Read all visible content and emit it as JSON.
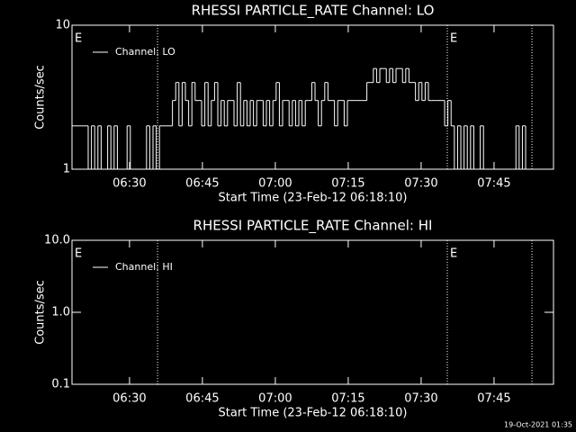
{
  "chart_data": [
    {
      "type": "line",
      "title": "RHESSI PARTICLE_RATE Channel: LO",
      "xlabel": "Start Time (23-Feb-12 06:18:10)",
      "ylabel": "Counts/sec",
      "log_y": true,
      "legend": "upper left",
      "xlim": [
        0,
        5944
      ],
      "xticks": [
        {
          "value": 710,
          "label": "06:30"
        },
        {
          "value": 1610,
          "label": "06:45"
        },
        {
          "value": 2510,
          "label": "07:00"
        },
        {
          "value": 3410,
          "label": "07:15"
        },
        {
          "value": 4310,
          "label": "07:30"
        },
        {
          "value": 5210,
          "label": "07:45"
        }
      ],
      "ylim": [
        1,
        10
      ],
      "yticks": [
        1,
        10
      ],
      "vlines": [
        1056,
        4633,
        5678
      ],
      "annotations": [
        {
          "x": 0,
          "text": "E"
        },
        {
          "x": 4633,
          "text": "E"
        }
      ],
      "x": [
        0,
        40,
        80,
        120,
        160,
        200,
        240,
        280,
        320,
        360,
        400,
        440,
        480,
        520,
        560,
        600,
        640,
        680,
        720,
        760,
        800,
        840,
        880,
        920,
        960,
        1000,
        1040,
        1080,
        1120,
        1160,
        1200,
        1240,
        1280,
        1320,
        1360,
        1400,
        1440,
        1480,
        1520,
        1560,
        1600,
        1640,
        1680,
        1720,
        1760,
        1800,
        1840,
        1880,
        1920,
        1960,
        2000,
        2040,
        2080,
        2120,
        2160,
        2200,
        2240,
        2280,
        2320,
        2360,
        2400,
        2440,
        2480,
        2520,
        2560,
        2600,
        2640,
        2680,
        2720,
        2760,
        2800,
        2840,
        2880,
        2920,
        2960,
        3000,
        3040,
        3080,
        3120,
        3160,
        3200,
        3240,
        3280,
        3320,
        3360,
        3400,
        3440,
        3480,
        3520,
        3560,
        3600,
        3640,
        3680,
        3720,
        3760,
        3800,
        3840,
        3880,
        3920,
        3960,
        4000,
        4040,
        4080,
        4120,
        4160,
        4200,
        4240,
        4280,
        4320,
        4360,
        4400,
        4440,
        4480,
        4520,
        4560,
        4600,
        4640,
        4680,
        4720,
        4760,
        4800,
        4840,
        4880,
        4920,
        4960,
        5000,
        5040,
        5080,
        5120,
        5160,
        5200,
        5240,
        5280,
        5320,
        5360,
        5400,
        5440,
        5480,
        5520,
        5560,
        5600,
        5640,
        5680
      ],
      "series": [
        {
          "name": "Channel: LO",
          "color": "#ffffff",
          "values": [
            2,
            2,
            2,
            2,
            2,
            1,
            2,
            1,
            2,
            1,
            1,
            2,
            1,
            2,
            1,
            1,
            1,
            2,
            1,
            1,
            1,
            1,
            1,
            2,
            1,
            2,
            1,
            2,
            2,
            2,
            2,
            3,
            4,
            2,
            4,
            3,
            2,
            4,
            3,
            3,
            2,
            4,
            2,
            3,
            4,
            2,
            3,
            2,
            3,
            3,
            2,
            4,
            2,
            3,
            2,
            3,
            2,
            3,
            3,
            2,
            3,
            2,
            3,
            4,
            2,
            3,
            3,
            2,
            3,
            2,
            3,
            2,
            3,
            3,
            4,
            3,
            2,
            3,
            4,
            3,
            3,
            2,
            3,
            3,
            2,
            3,
            3,
            3,
            3,
            3,
            3,
            4,
            4,
            5,
            4,
            5,
            5,
            4,
            5,
            4,
            5,
            5,
            4,
            5,
            4,
            4,
            3,
            4,
            3,
            4,
            3,
            3,
            3,
            3,
            3,
            2,
            3,
            2,
            1,
            2,
            1,
            2,
            1,
            2,
            1,
            1,
            2,
            1,
            1,
            1,
            1,
            1,
            1,
            1,
            1,
            1,
            1,
            2,
            1,
            2,
            1,
            1,
            1
          ]
        }
      ]
    },
    {
      "type": "line",
      "title": "RHESSI PARTICLE_RATE Channel: HI",
      "xlabel": "Start Time (23-Feb-12 06:18:10)",
      "ylabel": "Counts/sec",
      "log_y": true,
      "legend": "upper left",
      "xlim": [
        0,
        5944
      ],
      "xticks": [
        {
          "value": 710,
          "label": "06:30"
        },
        {
          "value": 1610,
          "label": "06:45"
        },
        {
          "value": 2510,
          "label": "07:00"
        },
        {
          "value": 3410,
          "label": "07:15"
        },
        {
          "value": 4310,
          "label": "07:30"
        },
        {
          "value": 5210,
          "label": "07:45"
        }
      ],
      "ylim": [
        0.1,
        10
      ],
      "yticks": [
        0.1,
        {
          "value": 1,
          "label": "1.0"
        },
        {
          "value": 10,
          "label": "10.0"
        }
      ],
      "vlines": [
        1056,
        4633,
        5678
      ],
      "annotations": [
        {
          "x": 0,
          "text": "E"
        },
        {
          "x": 4633,
          "text": "E"
        }
      ],
      "x": [],
      "series": [
        {
          "name": "Channel: HI",
          "color": "#ffffff",
          "values": []
        }
      ]
    }
  ],
  "footer": "19-Oct-2021 01:35"
}
